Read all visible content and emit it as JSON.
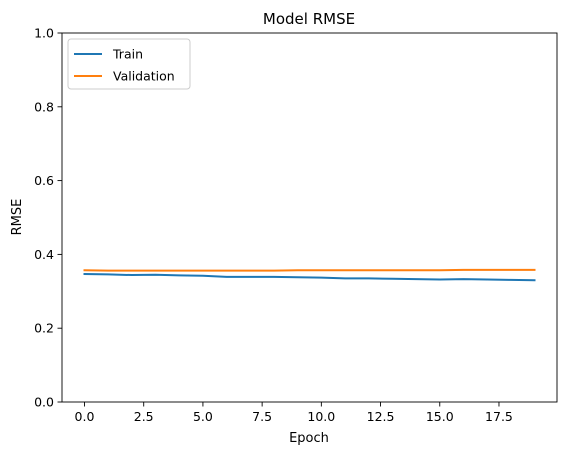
{
  "chart_data": {
    "type": "line",
    "title": "Model RMSE",
    "xlabel": "Epoch",
    "ylabel": "RMSE",
    "xlim": [
      -0.95,
      19.95
    ],
    "ylim": [
      0,
      1
    ],
    "grid": false,
    "legend_position": "upper left",
    "x": [
      0,
      1,
      2,
      3,
      4,
      5,
      6,
      7,
      8,
      9,
      10,
      11,
      12,
      13,
      14,
      15,
      16,
      17,
      18,
      19
    ],
    "x_ticks": [
      0.0,
      2.5,
      5.0,
      7.5,
      10.0,
      12.5,
      15.0,
      17.5
    ],
    "x_tick_labels": [
      "0.0",
      "2.5",
      "5.0",
      "7.5",
      "10.0",
      "12.5",
      "15.0",
      "17.5"
    ],
    "y_ticks": [
      0.0,
      0.2,
      0.4,
      0.6,
      0.8,
      1.0
    ],
    "y_tick_labels": [
      "0.0",
      "0.2",
      "0.4",
      "0.6",
      "0.8",
      "1.0"
    ],
    "series": [
      {
        "name": "Train",
        "color": "#1f77b4",
        "values": [
          0.347,
          0.346,
          0.344,
          0.345,
          0.343,
          0.342,
          0.339,
          0.339,
          0.339,
          0.338,
          0.337,
          0.335,
          0.335,
          0.334,
          0.333,
          0.332,
          0.333,
          0.332,
          0.331,
          0.33
        ]
      },
      {
        "name": "Validation",
        "color": "#ff7f0e",
        "values": [
          0.357,
          0.356,
          0.356,
          0.356,
          0.356,
          0.356,
          0.356,
          0.356,
          0.356,
          0.357,
          0.357,
          0.357,
          0.357,
          0.357,
          0.357,
          0.357,
          0.358,
          0.358,
          0.358,
          0.358
        ]
      }
    ]
  }
}
